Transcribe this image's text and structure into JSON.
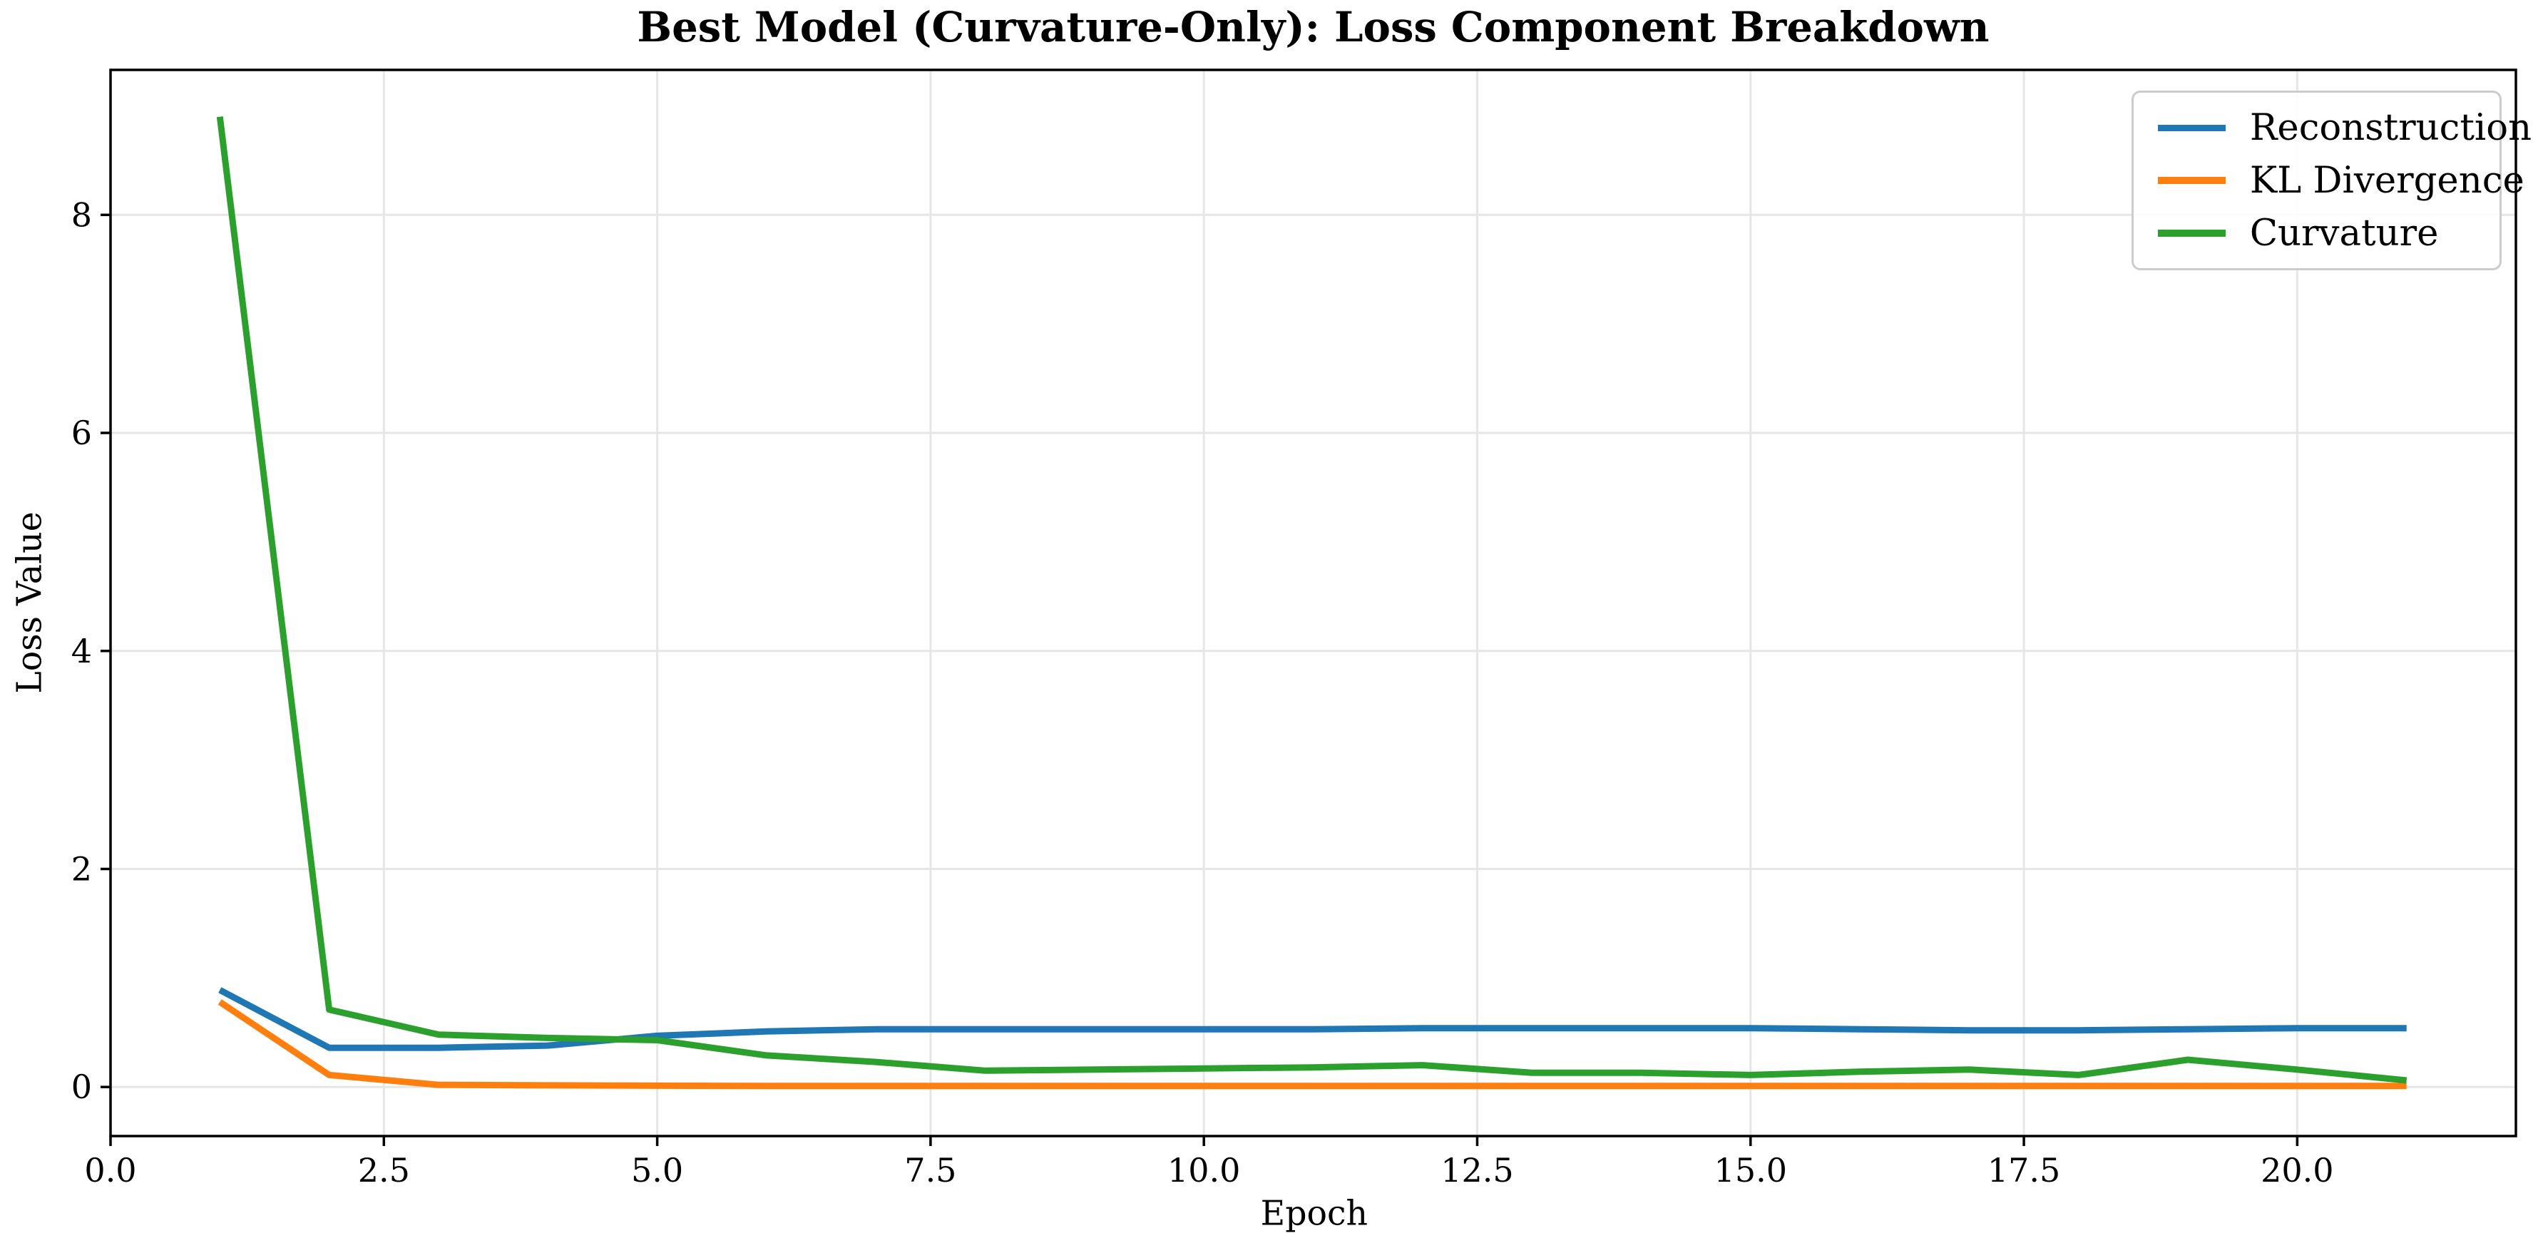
{
  "chart_data": {
    "type": "line",
    "title": "Best Model (Curvature-Only): Loss Component Breakdown",
    "xlabel": "Epoch",
    "ylabel": "Loss Value",
    "x": [
      1,
      2,
      3,
      4,
      5,
      6,
      7,
      8,
      9,
      10,
      11,
      12,
      13,
      14,
      15,
      16,
      17,
      18,
      19,
      20,
      21
    ],
    "series": [
      {
        "name": "Reconstruction",
        "color": "#1f77b4",
        "values": [
          0.89,
          0.36,
          0.36,
          0.38,
          0.47,
          0.51,
          0.53,
          0.53,
          0.53,
          0.53,
          0.53,
          0.54,
          0.54,
          0.54,
          0.54,
          0.53,
          0.52,
          0.52,
          0.53,
          0.54,
          0.54
        ]
      },
      {
        "name": "KL Divergence",
        "color": "#ff7f0e",
        "values": [
          0.78,
          0.11,
          0.02,
          0.015,
          0.012,
          0.01,
          0.01,
          0.01,
          0.01,
          0.01,
          0.01,
          0.01,
          0.01,
          0.01,
          0.01,
          0.01,
          0.01,
          0.01,
          0.01,
          0.01,
          0.01
        ]
      },
      {
        "name": "Curvature",
        "color": "#2ca02c",
        "values": [
          8.9,
          0.71,
          0.48,
          0.45,
          0.43,
          0.29,
          0.23,
          0.15,
          0.16,
          0.17,
          0.18,
          0.2,
          0.13,
          0.13,
          0.11,
          0.14,
          0.16,
          0.11,
          0.25,
          0.16,
          0.06
        ]
      }
    ],
    "x_ticks": {
      "values": [
        0,
        2.5,
        5,
        7.5,
        10,
        12.5,
        15,
        17.5,
        20
      ],
      "labels": [
        "0.0",
        "2.5",
        "5.0",
        "7.5",
        "10.0",
        "12.5",
        "15.0",
        "17.5",
        "20.0"
      ]
    },
    "y_ticks": {
      "values": [
        0,
        2,
        4,
        6,
        8
      ],
      "labels": [
        "0",
        "2",
        "4",
        "6",
        "8"
      ]
    },
    "xlim": [
      0,
      22
    ],
    "ylim": [
      -0.45,
      9.33
    ],
    "grid": true,
    "legend_position": "upper right",
    "colors": {
      "grid": "#e6e6e6",
      "spine": "#000000",
      "background": "#ffffff",
      "tick_text": "#000000",
      "legend_border": "#cccccc"
    }
  }
}
